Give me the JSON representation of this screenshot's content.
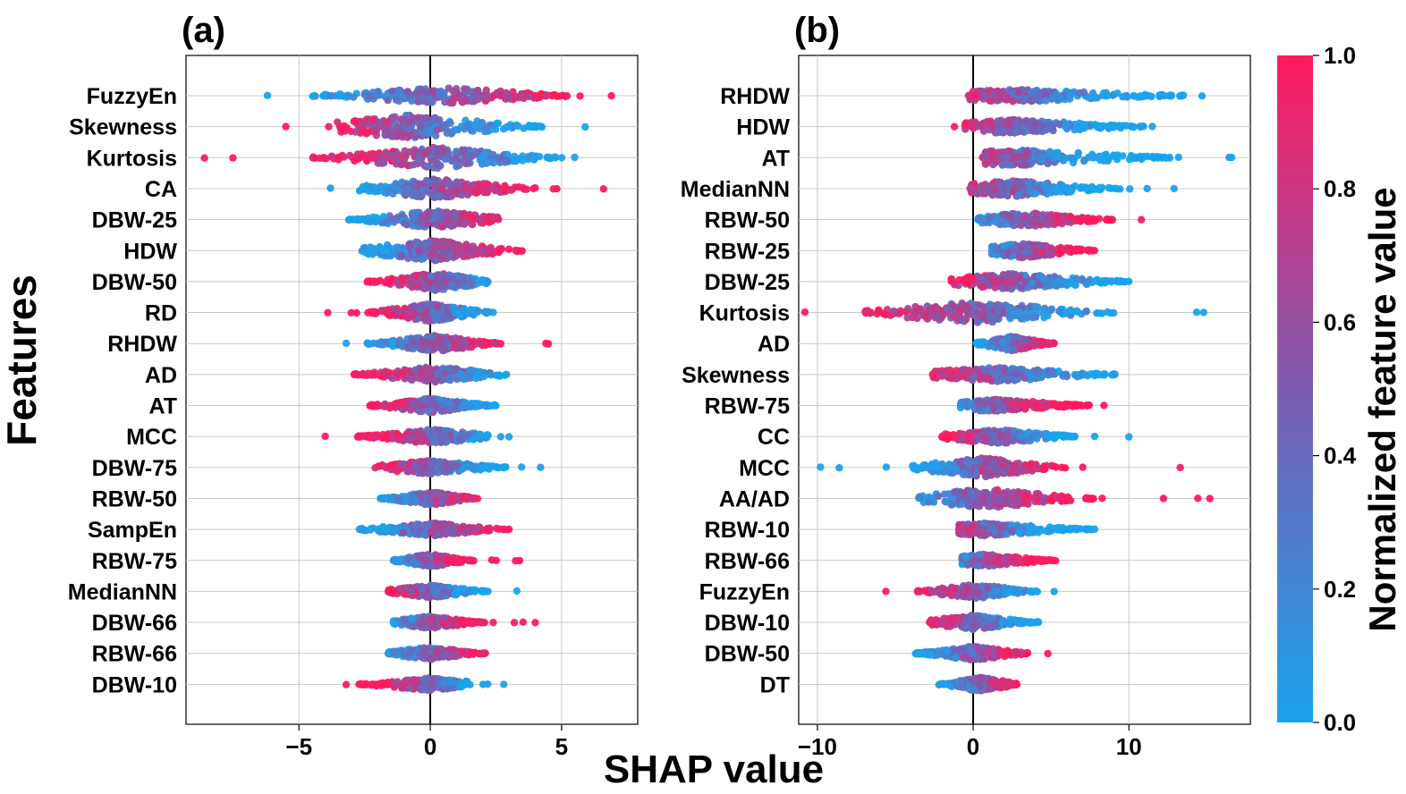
{
  "figure": {
    "xlabel": "SHAP value",
    "ylabel": "Features",
    "colorbar_label": "Normalized feature value"
  },
  "colorbar": {
    "ticks": [
      "0.0",
      "0.2",
      "0.4",
      "0.6",
      "0.8",
      "1.0"
    ],
    "low_color": "#1aa3ec",
    "mid_color": "#7d5cb2",
    "high_color": "#ff1a5e"
  },
  "chart_data": [
    {
      "type": "scatter",
      "subtype": "beeswarm",
      "panel_label": "(a)",
      "xlim": [
        -9.3,
        7.9
      ],
      "xticks": [
        -5,
        0,
        5
      ],
      "xtick_labels": [
        "−5",
        "0",
        "5"
      ],
      "grid": true,
      "features": [
        "FuzzyEn",
        "Skewness",
        "Kurtosis",
        "CA",
        "DBW-25",
        "HDW",
        "DBW-50",
        "RD",
        "RHDW",
        "AD",
        "AT",
        "MCC",
        "DBW-75",
        "RBW-50",
        "SampEn",
        "RBW-75",
        "MedianNN",
        "DBW-66",
        "RBW-66",
        "DBW-10"
      ],
      "rows": [
        {
          "feature": "FuzzyEn",
          "min": -6.2,
          "max": 6.9,
          "dense": [
            -4.6,
            5.8
          ],
          "peak": 0.5,
          "width": 18,
          "dir": 1
        },
        {
          "feature": "Skewness",
          "min": -5.5,
          "max": 5.9,
          "dense": [
            -3.6,
            4.3
          ],
          "peak": -0.8,
          "width": 26,
          "dir": -1
        },
        {
          "feature": "Kurtosis",
          "min": -8.6,
          "max": 5.5,
          "dense": [
            -4.5,
            4.8
          ],
          "peak": 0.2,
          "width": 24,
          "dir": -1
        },
        {
          "feature": "CA",
          "min": -3.8,
          "max": 6.6,
          "dense": [
            -2.7,
            4.0
          ],
          "peak": 0.2,
          "width": 22,
          "dir": 1
        },
        {
          "feature": "DBW-25",
          "min": -3.1,
          "max": 2.6,
          "dense": [
            -3.1,
            2.6
          ],
          "peak": 0.2,
          "width": 20,
          "dir": 1
        },
        {
          "feature": "HDW",
          "min": -2.6,
          "max": 3.5,
          "dense": [
            -2.6,
            3.5
          ],
          "peak": 0.0,
          "width": 24,
          "dir": 1
        },
        {
          "feature": "DBW-50",
          "min": -2.4,
          "max": 2.2,
          "dense": [
            -2.4,
            2.2
          ],
          "peak": 0.2,
          "width": 20,
          "dir": -1
        },
        {
          "feature": "RD",
          "min": -3.9,
          "max": 2.4,
          "dense": [
            -2.3,
            2.4
          ],
          "peak": 0.0,
          "width": 20,
          "dir": -1
        },
        {
          "feature": "RHDW",
          "min": -3.2,
          "max": 4.5,
          "dense": [
            -2.4,
            2.8
          ],
          "peak": 0.2,
          "width": 18,
          "dir": 1
        },
        {
          "feature": "AD",
          "min": -2.9,
          "max": 2.9,
          "dense": [
            -2.9,
            2.9
          ],
          "peak": 0.2,
          "width": 18,
          "dir": -1
        },
        {
          "feature": "AT",
          "min": -2.3,
          "max": 2.5,
          "dense": [
            -2.3,
            2.5
          ],
          "peak": 0.0,
          "width": 16,
          "dir": -1
        },
        {
          "feature": "MCC",
          "min": -4.0,
          "max": 3.0,
          "dense": [
            -2.8,
            2.2
          ],
          "peak": 0.1,
          "width": 16,
          "dir": -1
        },
        {
          "feature": "DBW-75",
          "min": -2.1,
          "max": 4.2,
          "dense": [
            -2.1,
            2.9
          ],
          "peak": 0.0,
          "width": 16,
          "dir": -1
        },
        {
          "feature": "RBW-50",
          "min": -1.9,
          "max": 1.8,
          "dense": [
            -1.9,
            1.8
          ],
          "peak": 0.0,
          "width": 15,
          "dir": 1
        },
        {
          "feature": "SampEn",
          "min": -2.7,
          "max": 3.0,
          "dense": [
            -2.7,
            3.0
          ],
          "peak": 0.0,
          "width": 15,
          "dir": 1
        },
        {
          "feature": "RBW-75",
          "min": -1.4,
          "max": 3.4,
          "dense": [
            -1.4,
            1.6
          ],
          "peak": 0.0,
          "width": 15,
          "dir": 1
        },
        {
          "feature": "MedianNN",
          "min": -1.6,
          "max": 3.3,
          "dense": [
            -1.6,
            2.2
          ],
          "peak": 0.0,
          "width": 14,
          "dir": -1
        },
        {
          "feature": "DBW-66",
          "min": -1.4,
          "max": 4.0,
          "dense": [
            -1.4,
            2.1
          ],
          "peak": 0.0,
          "width": 14,
          "dir": 1
        },
        {
          "feature": "RBW-66",
          "min": -1.6,
          "max": 2.1,
          "dense": [
            -1.6,
            2.1
          ],
          "peak": 0.0,
          "width": 14,
          "dir": 1
        },
        {
          "feature": "DBW-10",
          "min": -3.2,
          "max": 2.8,
          "dense": [
            -2.7,
            1.4
          ],
          "peak": 0.0,
          "width": 14,
          "dir": -1
        }
      ]
    },
    {
      "type": "scatter",
      "subtype": "beeswarm",
      "panel_label": "(b)",
      "xlim": [
        -11.2,
        17.8
      ],
      "xticks": [
        -10,
        0,
        10
      ],
      "xtick_labels": [
        "−10",
        "0",
        "10"
      ],
      "grid": true,
      "features": [
        "RHDW",
        "HDW",
        "AT",
        "MedianNN",
        "RBW-50",
        "RBW-25",
        "DBW-25",
        "Kurtosis",
        "AD",
        "Skewness",
        "RBW-75",
        "CC",
        "MCC",
        "AA/AD",
        "RBW-10",
        "RBW-66",
        "FuzzyEn",
        "DBW-10",
        "DBW-50",
        "DT"
      ],
      "rows": [
        {
          "feature": "RHDW",
          "min": -0.3,
          "max": 14.7,
          "dense": [
            -0.2,
            13.5
          ],
          "peak": 2.9,
          "width": 14,
          "dir": -1
        },
        {
          "feature": "HDW",
          "min": -1.2,
          "max": 11.5,
          "dense": [
            -0.5,
            11.0
          ],
          "peak": 2.6,
          "width": 16,
          "dir": -1
        },
        {
          "feature": "AT",
          "min": 0.6,
          "max": 16.6,
          "dense": [
            0.8,
            13.0
          ],
          "peak": 2.5,
          "width": 18,
          "dir": -1
        },
        {
          "feature": "MedianNN",
          "min": -0.2,
          "max": 12.9,
          "dense": [
            -0.1,
            9.5
          ],
          "peak": 2.5,
          "width": 18,
          "dir": -1
        },
        {
          "feature": "RBW-50",
          "min": 0.3,
          "max": 10.8,
          "dense": [
            0.3,
            9.0
          ],
          "peak": 3.4,
          "width": 16,
          "dir": 1
        },
        {
          "feature": "RBW-25",
          "min": 1.2,
          "max": 7.8,
          "dense": [
            1.2,
            7.8
          ],
          "peak": 3.2,
          "width": 16,
          "dir": 1
        },
        {
          "feature": "DBW-25",
          "min": -1.4,
          "max": 10.0,
          "dense": [
            -1.4,
            10.0
          ],
          "peak": 2.6,
          "width": 18,
          "dir": -1
        },
        {
          "feature": "Kurtosis",
          "min": -10.8,
          "max": 14.8,
          "dense": [
            -7.0,
            9.0
          ],
          "peak": 0.3,
          "width": 24,
          "dir": -1
        },
        {
          "feature": "AD",
          "min": 0.2,
          "max": 5.2,
          "dense": [
            0.2,
            5.2
          ],
          "peak": 2.5,
          "width": 16,
          "dir": 1
        },
        {
          "feature": "Skewness",
          "min": -2.6,
          "max": 9.1,
          "dense": [
            -2.6,
            9.1
          ],
          "peak": 1.5,
          "width": 16,
          "dir": -1
        },
        {
          "feature": "RBW-75",
          "min": -0.8,
          "max": 8.4,
          "dense": [
            -0.8,
            7.5
          ],
          "peak": 1.5,
          "width": 14,
          "dir": 1
        },
        {
          "feature": "CC",
          "min": -2.0,
          "max": 10.0,
          "dense": [
            -2.0,
            6.8
          ],
          "peak": 1.6,
          "width": 16,
          "dir": -1
        },
        {
          "feature": "MCC",
          "min": -9.8,
          "max": 13.3,
          "dense": [
            -4.0,
            6.0
          ],
          "peak": 0.5,
          "width": 22,
          "dir": 1
        },
        {
          "feature": "AA/AD",
          "min": -3.5,
          "max": 15.2,
          "dense": [
            -3.5,
            7.8
          ],
          "peak": 0.8,
          "width": 22,
          "dir": 1
        },
        {
          "feature": "RBW-10",
          "min": -0.9,
          "max": 7.8,
          "dense": [
            -0.9,
            7.8
          ],
          "peak": 0.8,
          "width": 14,
          "dir": -1
        },
        {
          "feature": "RBW-66",
          "min": -0.7,
          "max": 5.3,
          "dense": [
            -0.7,
            5.3
          ],
          "peak": 0.7,
          "width": 14,
          "dir": 1
        },
        {
          "feature": "FuzzyEn",
          "min": -5.6,
          "max": 5.2,
          "dense": [
            -3.6,
            4.2
          ],
          "peak": 0.2,
          "width": 16,
          "dir": -1
        },
        {
          "feature": "DBW-10",
          "min": -2.8,
          "max": 4.2,
          "dense": [
            -2.8,
            4.2
          ],
          "peak": 0.0,
          "width": 16,
          "dir": -1
        },
        {
          "feature": "DBW-50",
          "min": -3.7,
          "max": 4.8,
          "dense": [
            -3.7,
            3.5
          ],
          "peak": 0.0,
          "width": 16,
          "dir": 1
        },
        {
          "feature": "DT",
          "min": -2.2,
          "max": 2.8,
          "dense": [
            -2.2,
            2.8
          ],
          "peak": 0.5,
          "width": 16,
          "dir": 1
        }
      ]
    }
  ]
}
